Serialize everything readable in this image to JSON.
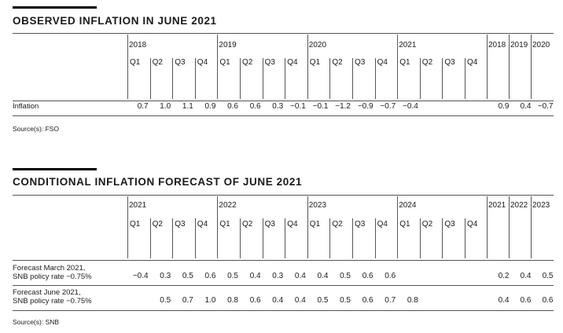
{
  "section1": {
    "title": "OBSERVED INFLATION IN JUNE 2021",
    "quarter_years": [
      "2018",
      "2019",
      "2020",
      "2021"
    ],
    "quarters": [
      "Q1",
      "Q2",
      "Q3",
      "Q4",
      "Q1",
      "Q2",
      "Q3",
      "Q4",
      "Q1",
      "Q2",
      "Q3",
      "Q4",
      "Q1",
      "Q2",
      "Q3",
      "Q4"
    ],
    "annual_years": [
      "2018",
      "2019",
      "2020"
    ],
    "rows": [
      {
        "label": "Inflation",
        "quarterly": [
          "0.7",
          "1.0",
          "1.1",
          "0.9",
          "0.6",
          "0.6",
          "0.3",
          "−0.1",
          "−0.1",
          "−1.2",
          "−0.9",
          "−0.7",
          "−0.4",
          "",
          "",
          ""
        ],
        "annual": [
          "0.9",
          "0.4",
          "−0.7"
        ]
      }
    ],
    "source": "Source(s): FSO"
  },
  "section2": {
    "title": "CONDITIONAL INFLATION FORECAST OF JUNE 2021",
    "quarter_years": [
      "2021",
      "2022",
      "2023",
      "2024"
    ],
    "quarters": [
      "Q1",
      "Q2",
      "Q3",
      "Q4",
      "Q1",
      "Q2",
      "Q3",
      "Q4",
      "Q1",
      "Q2",
      "Q3",
      "Q4",
      "Q1",
      "Q2",
      "Q3",
      "Q4"
    ],
    "annual_years": [
      "2021",
      "2022",
      "2023"
    ],
    "rows": [
      {
        "label": "Forecast March 2021,\nSNB policy rate −0.75%",
        "quarterly": [
          "−0.4",
          "0.3",
          "0.5",
          "0.6",
          "0.5",
          "0.4",
          "0.3",
          "0.4",
          "0.4",
          "0.5",
          "0.6",
          "0.6",
          "",
          "",
          "",
          ""
        ],
        "annual": [
          "0.2",
          "0.4",
          "0.5"
        ]
      },
      {
        "label": "Forecast June 2021,\nSNB policy rate −0.75%",
        "quarterly": [
          "",
          "0.5",
          "0.7",
          "1.0",
          "0.8",
          "0.6",
          "0.4",
          "0.4",
          "0.5",
          "0.5",
          "0.6",
          "0.7",
          "0.8",
          "",
          "",
          ""
        ],
        "annual": [
          "0.4",
          "0.6",
          "0.6"
        ]
      }
    ],
    "source": "Source(s): SNB"
  }
}
